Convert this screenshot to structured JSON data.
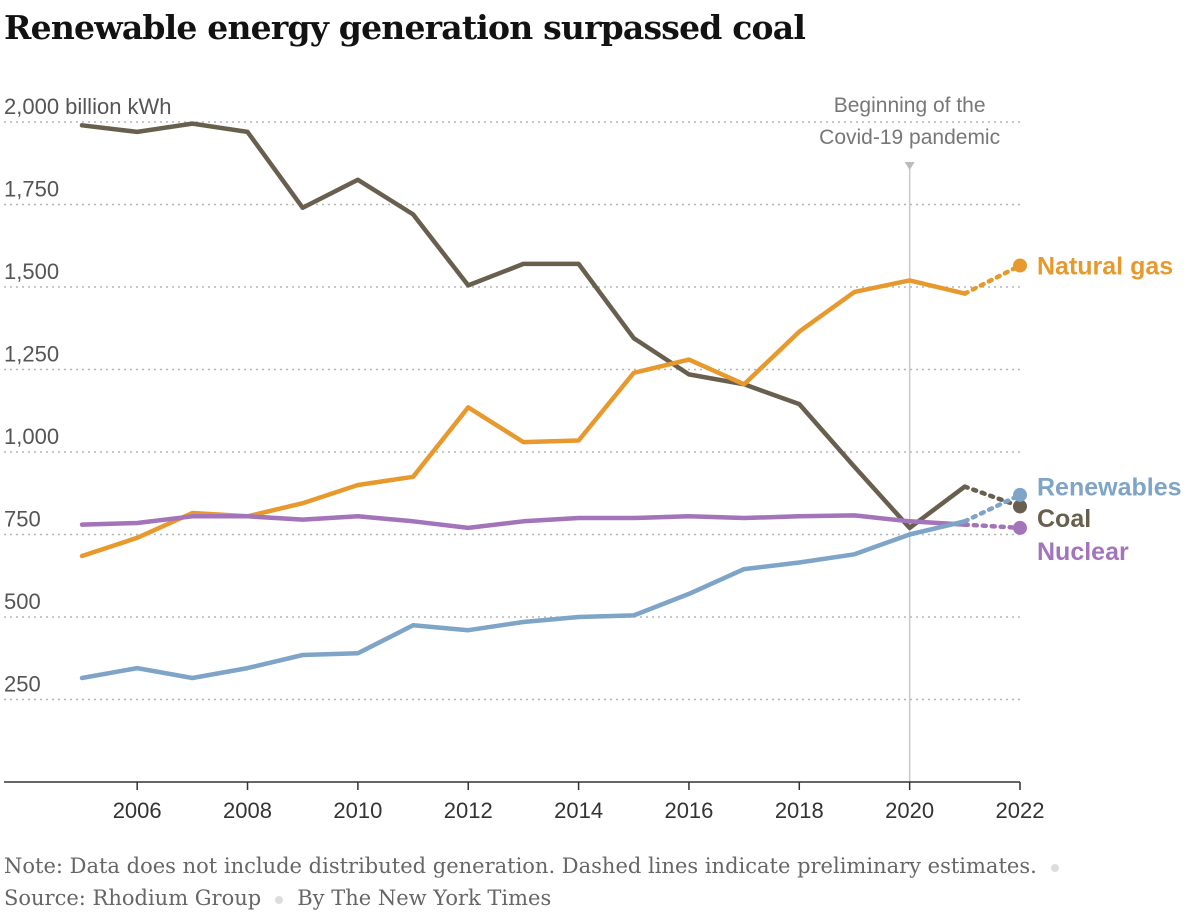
{
  "chart_data": {
    "type": "line",
    "title": "Renewable energy generation surpassed coal",
    "yunit_label": "2,000 billion kWh",
    "ylim": [
      0,
      2000
    ],
    "yticks": [
      250,
      500,
      750,
      1000,
      1250,
      1500,
      1750,
      2000
    ],
    "ytick_labels": [
      "250",
      "500",
      "750",
      "1,000",
      "1,250",
      "1,500",
      "1,750",
      "2,000"
    ],
    "xlim": [
      2005,
      2022
    ],
    "xticks": [
      2006,
      2008,
      2010,
      2012,
      2014,
      2016,
      2018,
      2020,
      2022
    ],
    "xtick_labels": [
      "2006",
      "2008",
      "2010",
      "2012",
      "2014",
      "2016",
      "2018",
      "2020",
      "2022"
    ],
    "grid": true,
    "annotation": {
      "x": 2020,
      "line1": "Beginning of the",
      "line2": "Covid-19 pandemic"
    },
    "series": [
      {
        "name": "Coal",
        "color": "#695f4f",
        "x": [
          2005,
          2006,
          2007,
          2008,
          2009,
          2010,
          2011,
          2012,
          2013,
          2014,
          2015,
          2016,
          2017,
          2018,
          2019,
          2020,
          2021
        ],
        "values": [
          1990,
          1970,
          1995,
          1970,
          1740,
          1825,
          1720,
          1505,
          1570,
          1570,
          1345,
          1235,
          1205,
          1145,
          955,
          770,
          895
        ],
        "prelim_x": [
          2021,
          2022
        ],
        "prelim_values": [
          895,
          835
        ]
      },
      {
        "name": "Natural gas",
        "color": "#e8992d",
        "x": [
          2005,
          2006,
          2007,
          2008,
          2009,
          2010,
          2011,
          2012,
          2013,
          2014,
          2015,
          2016,
          2017,
          2018,
          2019,
          2020,
          2021
        ],
        "values": [
          685,
          740,
          815,
          805,
          845,
          900,
          925,
          1135,
          1030,
          1035,
          1240,
          1280,
          1205,
          1365,
          1485,
          1520,
          1480
        ],
        "prelim_x": [
          2021,
          2022
        ],
        "prelim_values": [
          1480,
          1565
        ]
      },
      {
        "name": "Nuclear",
        "color": "#a374b9",
        "x": [
          2005,
          2006,
          2007,
          2008,
          2009,
          2010,
          2011,
          2012,
          2013,
          2014,
          2015,
          2016,
          2017,
          2018,
          2019,
          2020,
          2021
        ],
        "values": [
          780,
          785,
          805,
          805,
          795,
          805,
          790,
          770,
          790,
          800,
          800,
          805,
          800,
          805,
          808,
          790,
          780
        ],
        "prelim_x": [
          2021,
          2022
        ],
        "prelim_values": [
          780,
          770
        ]
      },
      {
        "name": "Renewables",
        "color": "#7ea4c8",
        "x": [
          2005,
          2006,
          2007,
          2008,
          2009,
          2010,
          2011,
          2012,
          2013,
          2014,
          2015,
          2016,
          2017,
          2018,
          2019,
          2020,
          2021
        ],
        "values": [
          315,
          345,
          315,
          345,
          385,
          390,
          475,
          460,
          485,
          500,
          505,
          570,
          645,
          665,
          690,
          750,
          790
        ],
        "prelim_x": [
          2021,
          2022
        ],
        "prelim_values": [
          790,
          870
        ]
      }
    ],
    "labels": [
      {
        "name": "Natural gas",
        "text": "Natural gas",
        "value": 1565
      },
      {
        "name": "Renewables",
        "text": "Renewables",
        "value": 895
      },
      {
        "name": "Coal",
        "text": "Coal",
        "value": 800
      },
      {
        "name": "Nuclear",
        "text": "Nuclear",
        "value": 700
      }
    ]
  },
  "footer": {
    "note": "Note: Data does not include distributed generation. Dashed lines indicate preliminary estimates.",
    "source": "Source: Rhodium Group",
    "byline": "By The New York Times"
  }
}
